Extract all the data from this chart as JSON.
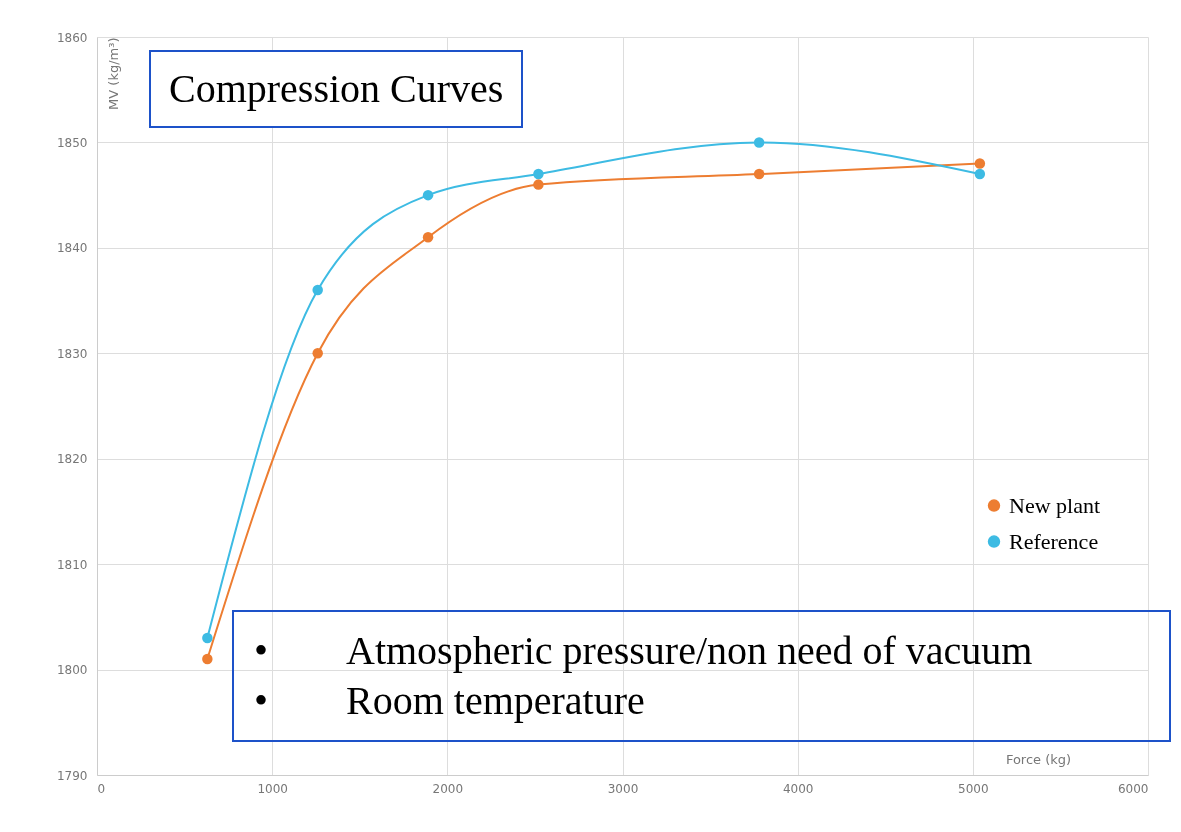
{
  "chart_data": {
    "type": "line",
    "title": "Compression Curves",
    "xlabel": "Force (kg)",
    "ylabel": "MV (kg/m³)",
    "x": [
      630,
      1260,
      1890,
      2520,
      3780,
      5040
    ],
    "series": [
      {
        "name": "New plant",
        "color": "#ed7d31",
        "values": [
          1801,
          1830,
          1841,
          1846,
          1847,
          1848
        ]
      },
      {
        "name": "Reference",
        "color": "#3dbbe3",
        "values": [
          1803,
          1836,
          1845,
          1847,
          1850,
          1847
        ]
      }
    ],
    "xlim": [
      0,
      6000
    ],
    "xticks": [
      0,
      1000,
      2000,
      3000,
      4000,
      5000,
      6000
    ],
    "ylim": [
      1790,
      1860
    ],
    "yticks": [
      1790,
      1800,
      1810,
      1820,
      1830,
      1840,
      1850,
      1860
    ],
    "grid": true,
    "legend": "right",
    "marker": "circle",
    "line_style": "solid",
    "annotations": [
      "•\tAtmospheric pressure/non need of vacuum",
      "•\tRoom temperature"
    ]
  }
}
